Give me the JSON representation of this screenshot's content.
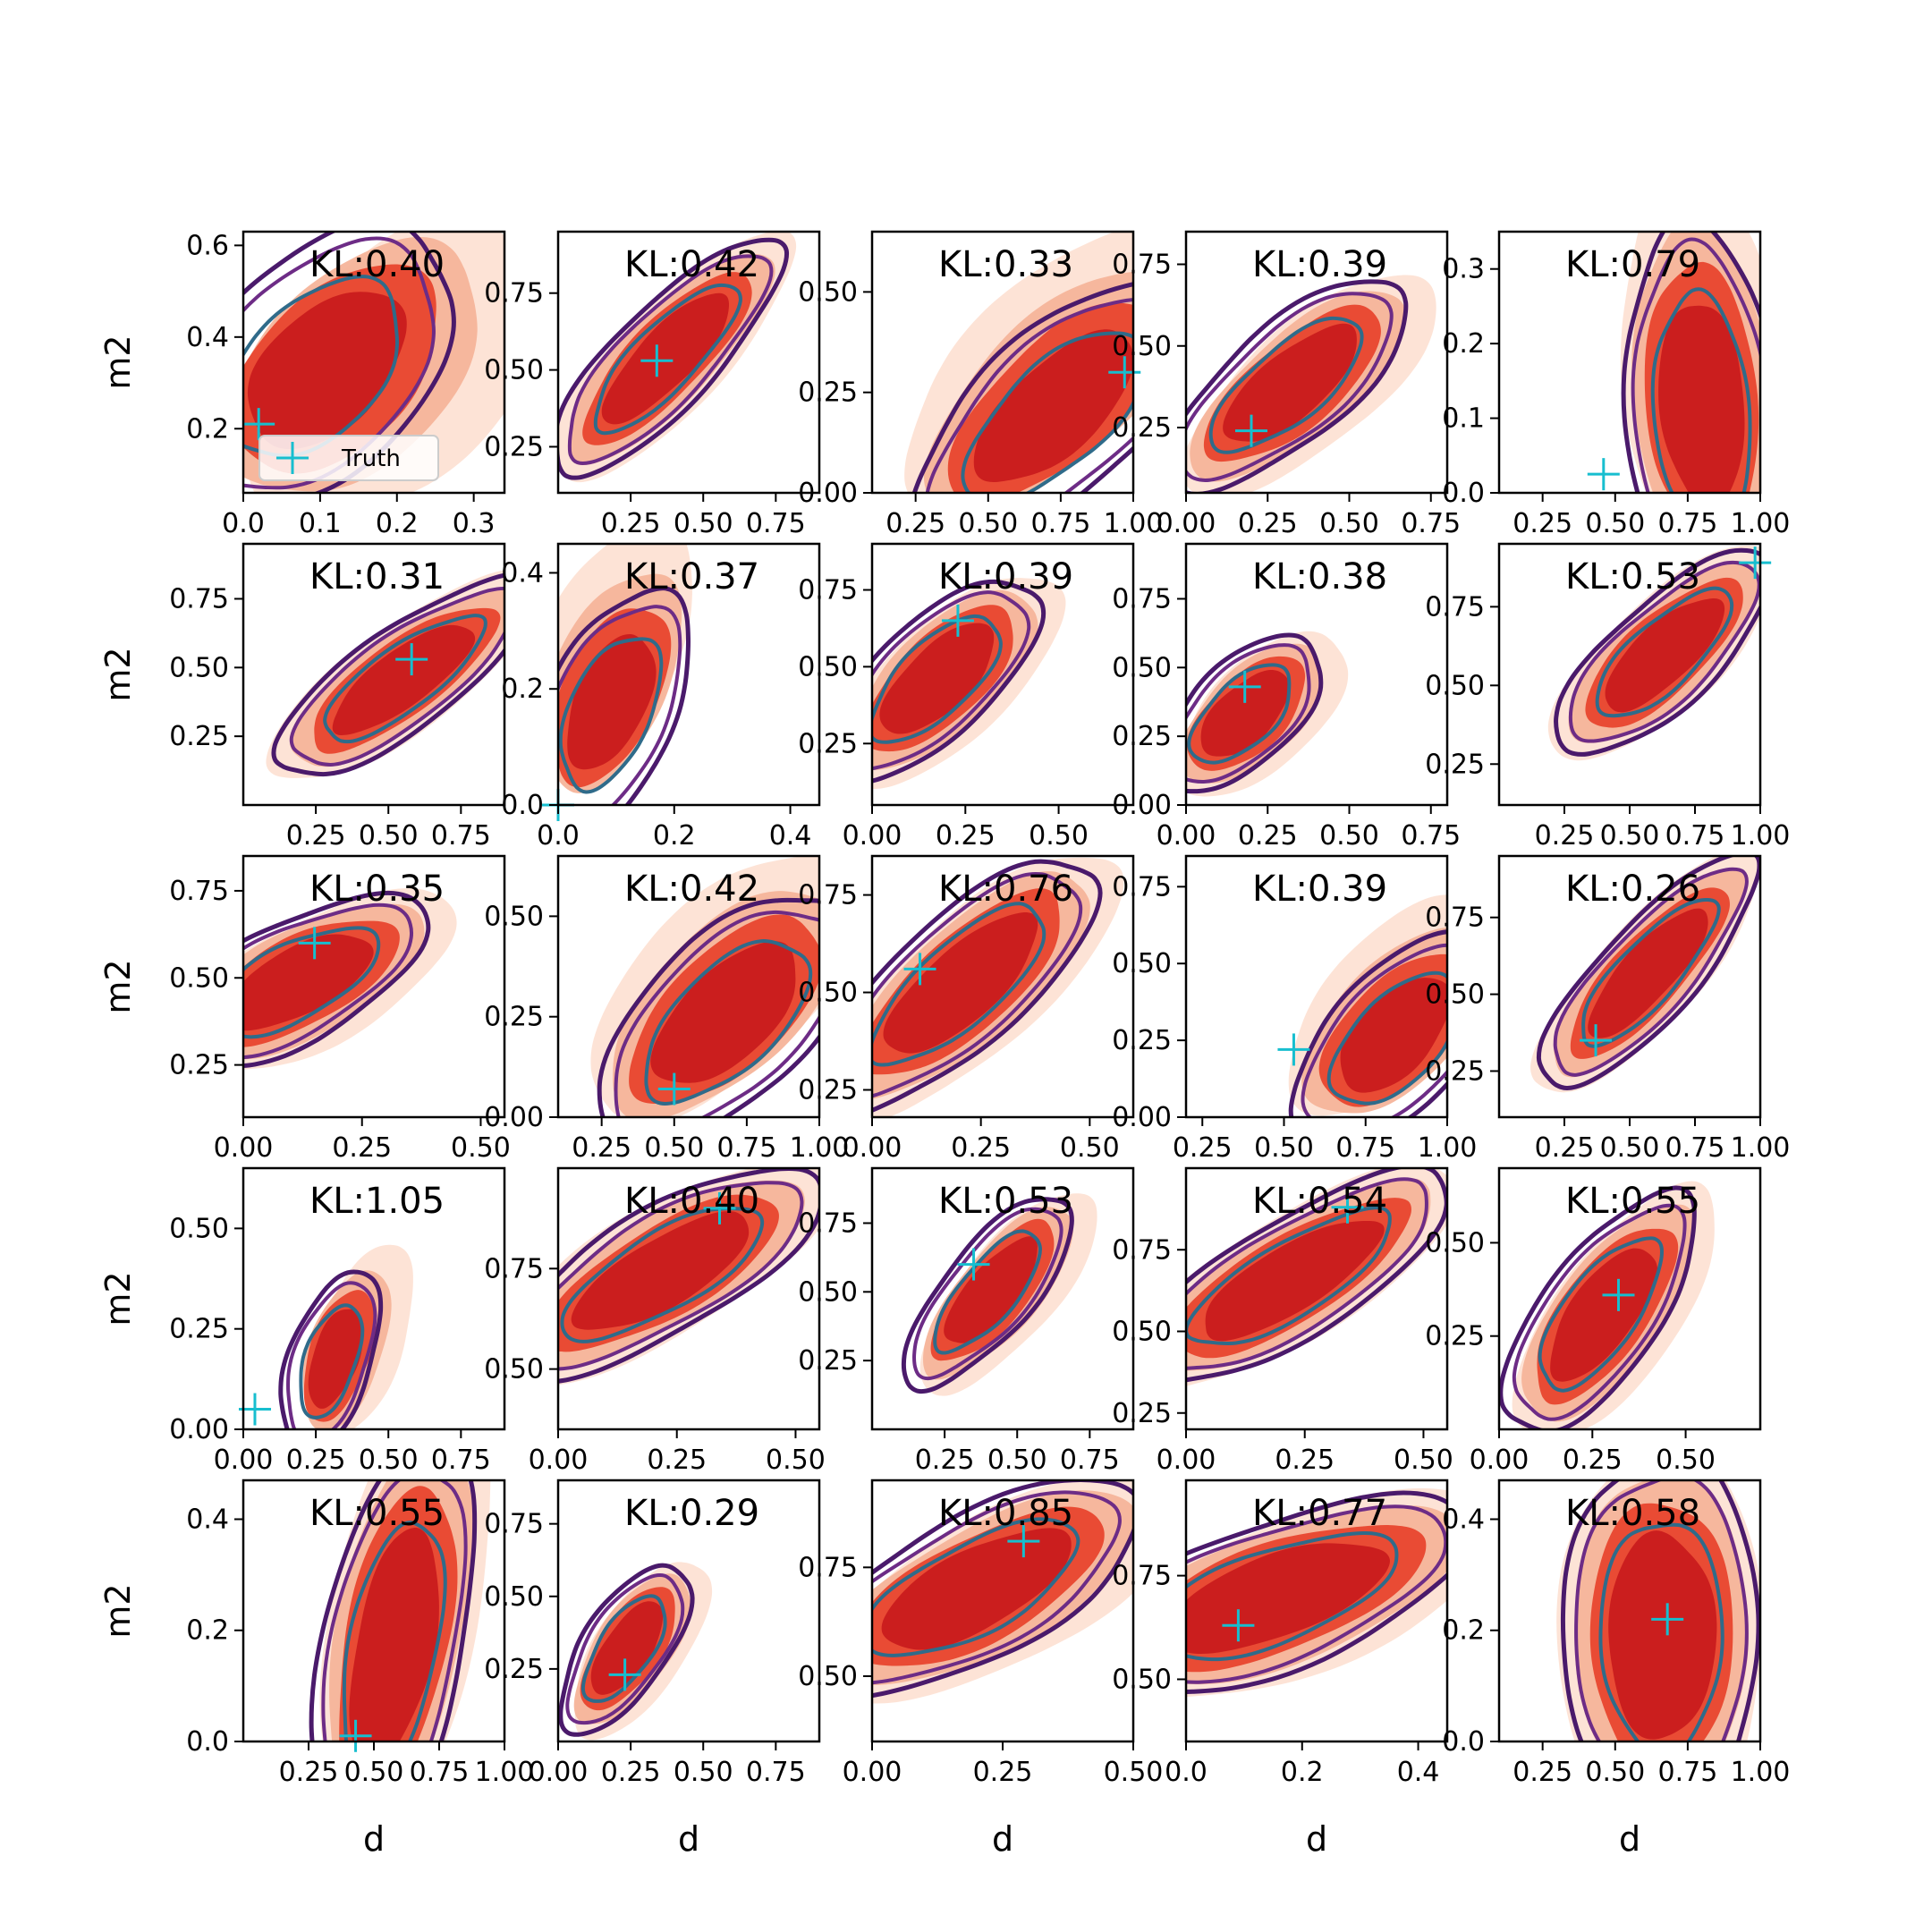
{
  "chart_data": {
    "type": "contour-grid",
    "rows": 5,
    "cols": 5,
    "xlabel": "d",
    "ylabel": "m2",
    "legend": {
      "label": "Truth",
      "marker": "+",
      "placement": "lower-right of first panel"
    },
    "colors": {
      "filled_levels": [
        "#fde0d2",
        "#f5b49a",
        "#e8442e",
        "#cb1e1e"
      ],
      "outer_contour": "#4a1a6b",
      "mid_contour": "#6d2c86",
      "inner_contour": "#2f6b8a",
      "truth_marker": "#17becf"
    },
    "panels": [
      {
        "kl": "KL:0.40",
        "xlim": [
          0.0,
          0.34
        ],
        "ylim": [
          0.06,
          0.63
        ],
        "xticks": [
          0.0,
          0.1,
          0.2,
          0.3
        ],
        "xticklabels": [
          "0.0",
          "0.1",
          "0.2",
          "0.3"
        ],
        "yticks": [
          0.2,
          0.4,
          0.6
        ],
        "yticklabels": [
          "0.2",
          "0.4",
          "0.6"
        ],
        "truth": [
          0.02,
          0.21
        ],
        "blob": {
          "cx": 0.09,
          "cy": 0.33,
          "angle": 70,
          "len": 0.29,
          "wid": 0.14,
          "sx": 0.12,
          "sy": 0.0
        },
        "legend": true
      },
      {
        "kl": "KL:0.42",
        "xlim": [
          0.0,
          0.9
        ],
        "ylim": [
          0.1,
          0.95
        ],
        "xticks": [
          0.25,
          0.5,
          0.75
        ],
        "xticklabels": [
          "0.25",
          "0.50",
          "0.75"
        ],
        "yticks": [
          0.25,
          0.5,
          0.75
        ],
        "yticklabels": [
          "0.25",
          "0.50",
          "0.75"
        ],
        "truth": [
          0.34,
          0.53
        ],
        "blob": {
          "cx": 0.37,
          "cy": 0.54,
          "angle": 44,
          "len": 0.47,
          "wid": 0.15,
          "sx": 0.02,
          "sy": 0.0
        }
      },
      {
        "kl": "KL:0.33",
        "xlim": [
          0.1,
          1.0
        ],
        "ylim": [
          0.0,
          0.65
        ],
        "xticks": [
          0.25,
          0.5,
          0.75,
          1.0
        ],
        "xticklabels": [
          "0.25",
          "0.50",
          "0.75",
          "1.00"
        ],
        "yticks": [
          0.0,
          0.25,
          0.5
        ],
        "yticklabels": [
          "0.00",
          "0.25",
          "0.50"
        ],
        "truth": [
          0.97,
          0.3
        ],
        "blob": {
          "cx": 0.73,
          "cy": 0.19,
          "angle": 30,
          "len": 0.5,
          "wid": 0.2,
          "sx": 0.0,
          "sy": 0.14
        }
      },
      {
        "kl": "KL:0.39",
        "xlim": [
          0.0,
          0.8
        ],
        "ylim": [
          0.05,
          0.85
        ],
        "xticks": [
          0.0,
          0.25,
          0.5,
          0.75
        ],
        "xticklabels": [
          "0.00",
          "0.25",
          "0.50",
          "0.75"
        ],
        "yticks": [
          0.25,
          0.5,
          0.75
        ],
        "yticklabels": [
          "0.25",
          "0.50",
          "0.75"
        ],
        "truth": [
          0.2,
          0.24
        ],
        "blob": {
          "cx": 0.31,
          "cy": 0.38,
          "angle": 40,
          "len": 0.41,
          "wid": 0.16,
          "sx": 0.08,
          "sy": 0.0
        }
      },
      {
        "kl": "KL:0.79",
        "xlim": [
          0.1,
          1.0
        ],
        "ylim": [
          0.0,
          0.35
        ],
        "xticks": [
          0.25,
          0.5,
          0.75,
          1.0
        ],
        "xticklabels": [
          "0.25",
          "0.50",
          "0.75",
          "1.00"
        ],
        "yticks": [
          0.0,
          0.1,
          0.2,
          0.3
        ],
        "yticklabels": [
          "0.0",
          "0.1",
          "0.2",
          "0.3"
        ],
        "truth": [
          0.46,
          0.025
        ],
        "blob": {
          "cx": 0.8,
          "cy": 0.11,
          "angle": 58,
          "len": 0.21,
          "wid": 0.25,
          "sx": 0.0,
          "sy": 0.06
        }
      },
      {
        "kl": "KL:0.31",
        "xlim": [
          0.0,
          0.9
        ],
        "ylim": [
          0.0,
          0.95
        ],
        "xticks": [
          0.25,
          0.5,
          0.75
        ],
        "xticklabels": [
          "0.25",
          "0.50",
          "0.75"
        ],
        "yticks": [
          0.25,
          0.5,
          0.75
        ],
        "yticklabels": [
          "0.25",
          "0.50",
          "0.75"
        ],
        "truth": [
          0.58,
          0.53
        ],
        "blob": {
          "cx": 0.55,
          "cy": 0.46,
          "angle": 38,
          "len": 0.48,
          "wid": 0.16,
          "sx": 0.0,
          "sy": 0.0
        }
      },
      {
        "kl": "KL:0.37",
        "xlim": [
          0.0,
          0.45
        ],
        "ylim": [
          0.0,
          0.45
        ],
        "xticks": [
          0.0,
          0.2,
          0.4
        ],
        "xticklabels": [
          "0.0",
          "0.2",
          "0.4"
        ],
        "yticks": [
          0.0,
          0.2,
          0.4
        ],
        "yticklabels": [
          "0.0",
          "0.2",
          "0.4"
        ],
        "truth": [
          0.0,
          0.0
        ],
        "blob": {
          "cx": 0.09,
          "cy": 0.16,
          "angle": 66,
          "len": 0.2,
          "wid": 0.1,
          "sx": 0.0,
          "sy": 0.12
        }
      },
      {
        "kl": "KL:0.39",
        "xlim": [
          0.0,
          0.7
        ],
        "ylim": [
          0.05,
          0.9
        ],
        "xticks": [
          0.0,
          0.25,
          0.5
        ],
        "xticklabels": [
          "0.00",
          "0.25",
          "0.50"
        ],
        "yticks": [
          0.25,
          0.5,
          0.75
        ],
        "yticklabels": [
          "0.25",
          "0.50",
          "0.75"
        ],
        "truth": [
          0.23,
          0.65
        ],
        "blob": {
          "cx": 0.17,
          "cy": 0.46,
          "angle": 52,
          "len": 0.35,
          "wid": 0.15,
          "sx": 0.05,
          "sy": 0.0
        }
      },
      {
        "kl": "KL:0.38",
        "xlim": [
          0.0,
          0.8
        ],
        "ylim": [
          0.0,
          0.95
        ],
        "xticks": [
          0.0,
          0.25,
          0.5,
          0.75
        ],
        "xticklabels": [
          "0.00",
          "0.25",
          "0.50",
          "0.75"
        ],
        "yticks": [
          0.0,
          0.25,
          0.5,
          0.75
        ],
        "yticklabels": [
          "0.00",
          "0.25",
          "0.50",
          "0.75"
        ],
        "truth": [
          0.18,
          0.43
        ],
        "blob": {
          "cx": 0.17,
          "cy": 0.33,
          "angle": 52,
          "len": 0.3,
          "wid": 0.15,
          "sx": 0.07,
          "sy": 0.0
        }
      },
      {
        "kl": "KL:0.53",
        "xlim": [
          0.0,
          1.0
        ],
        "ylim": [
          0.12,
          0.95
        ],
        "xticks": [
          0.25,
          0.5,
          0.75,
          1.0
        ],
        "xticklabels": [
          "0.25",
          "0.50",
          "0.75",
          "1.00"
        ],
        "yticks": [
          0.25,
          0.5,
          0.75
        ],
        "yticklabels": [
          "0.25",
          "0.50",
          "0.75"
        ],
        "truth": [
          0.98,
          0.89
        ],
        "blob": {
          "cx": 0.63,
          "cy": 0.6,
          "angle": 36,
          "len": 0.44,
          "wid": 0.16,
          "sx": 0.0,
          "sy": 0.0
        }
      },
      {
        "kl": "KL:0.35",
        "xlim": [
          0.0,
          0.55
        ],
        "ylim": [
          0.1,
          0.85
        ],
        "xticks": [
          0.0,
          0.25,
          0.5
        ],
        "xticklabels": [
          "0.00",
          "0.25",
          "0.50"
        ],
        "yticks": [
          0.25,
          0.5,
          0.75
        ],
        "yticklabels": [
          "0.25",
          "0.50",
          "0.75"
        ],
        "truth": [
          0.15,
          0.6
        ],
        "blob": {
          "cx": 0.11,
          "cy": 0.49,
          "angle": 40,
          "len": 0.3,
          "wid": 0.14,
          "sx": 0.05,
          "sy": 0.0
        }
      },
      {
        "kl": "KL:0.42",
        "xlim": [
          0.1,
          1.0
        ],
        "ylim": [
          0.0,
          0.65
        ],
        "xticks": [
          0.25,
          0.5,
          0.75,
          1.0
        ],
        "xticklabels": [
          "0.25",
          "0.50",
          "0.75",
          "1.00"
        ],
        "yticks": [
          0.0,
          0.25,
          0.5
        ],
        "yticklabels": [
          "0.00",
          "0.25",
          "0.50"
        ],
        "truth": [
          0.5,
          0.07
        ],
        "blob": {
          "cx": 0.68,
          "cy": 0.24,
          "angle": 30,
          "len": 0.45,
          "wid": 0.2,
          "sx": 0.0,
          "sy": 0.1
        }
      },
      {
        "kl": "KL:0.76",
        "xlim": [
          0.0,
          0.6
        ],
        "ylim": [
          0.18,
          0.85
        ],
        "xticks": [
          0.0,
          0.25,
          0.5
        ],
        "xticklabels": [
          "0.00",
          "0.25",
          "0.50"
        ],
        "yticks": [
          0.25,
          0.5,
          0.75
        ],
        "yticklabels": [
          "0.25",
          "0.50",
          "0.75"
        ],
        "truth": [
          0.11,
          0.56
        ],
        "blob": {
          "cx": 0.2,
          "cy": 0.52,
          "angle": 46,
          "len": 0.38,
          "wid": 0.14,
          "sx": 0.04,
          "sy": 0.0
        }
      },
      {
        "kl": "KL:0.39",
        "xlim": [
          0.2,
          1.0
        ],
        "ylim": [
          0.0,
          0.85
        ],
        "xticks": [
          0.25,
          0.5,
          0.75,
          1.0
        ],
        "xticklabels": [
          "0.25",
          "0.50",
          "0.75",
          "1.00"
        ],
        "yticks": [
          0.0,
          0.25,
          0.5,
          0.75
        ],
        "yticklabels": [
          "0.00",
          "0.25",
          "0.50",
          "0.75"
        ],
        "truth": [
          0.53,
          0.22
        ],
        "blob": {
          "cx": 0.84,
          "cy": 0.25,
          "angle": 50,
          "len": 0.36,
          "wid": 0.19,
          "sx": 0.0,
          "sy": 0.12
        }
      },
      {
        "kl": "KL:0.26",
        "xlim": [
          0.0,
          1.0
        ],
        "ylim": [
          0.1,
          0.95
        ],
        "xticks": [
          0.25,
          0.5,
          0.75,
          1.0
        ],
        "xticklabels": [
          "0.25",
          "0.50",
          "0.75",
          "1.00"
        ],
        "yticks": [
          0.25,
          0.5,
          0.75
        ],
        "yticklabels": [
          "0.25",
          "0.50",
          "0.75"
        ],
        "truth": [
          0.37,
          0.35
        ],
        "blob": {
          "cx": 0.57,
          "cy": 0.57,
          "angle": 42,
          "len": 0.48,
          "wid": 0.15,
          "sx": 0.0,
          "sy": 0.0
        }
      },
      {
        "kl": "KL:1.05",
        "xlim": [
          0.0,
          0.9
        ],
        "ylim": [
          0.0,
          0.65
        ],
        "xticks": [
          0.0,
          0.25,
          0.5,
          0.75
        ],
        "xticklabels": [
          "0.00",
          "0.25",
          "0.50",
          "0.75"
        ],
        "yticks": [
          0.0,
          0.25,
          0.5
        ],
        "yticklabels": [
          "0.00",
          "0.25",
          "0.50"
        ],
        "truth": [
          0.04,
          0.05
        ],
        "blob": {
          "cx": 0.3,
          "cy": 0.17,
          "angle": 60,
          "len": 0.22,
          "wid": 0.12,
          "sx": 0.12,
          "sy": 0.06
        }
      },
      {
        "kl": "KL:0.40",
        "xlim": [
          0.0,
          0.55
        ],
        "ylim": [
          0.35,
          1.0
        ],
        "xticks": [
          0.0,
          0.25,
          0.5
        ],
        "xticklabels": [
          "0.00",
          "0.25",
          "0.50"
        ],
        "yticks": [
          0.5,
          0.75
        ],
        "yticklabels": [
          "0.50",
          "0.75"
        ],
        "truth": [
          0.34,
          0.9
        ],
        "blob": {
          "cx": 0.22,
          "cy": 0.74,
          "angle": 36,
          "len": 0.36,
          "wid": 0.13,
          "sx": 0.0,
          "sy": 0.0
        }
      },
      {
        "kl": "KL:0.53",
        "xlim": [
          0.0,
          0.9
        ],
        "ylim": [
          0.0,
          0.95
        ],
        "xticks": [
          0.25,
          0.5,
          0.75
        ],
        "xticklabels": [
          "0.25",
          "0.50",
          "0.75"
        ],
        "yticks": [
          0.25,
          0.5,
          0.75
        ],
        "yticklabels": [
          "0.25",
          "0.50",
          "0.75"
        ],
        "truth": [
          0.35,
          0.6
        ],
        "blob": {
          "cx": 0.4,
          "cy": 0.5,
          "angle": 52,
          "len": 0.38,
          "wid": 0.14,
          "sx": 0.08,
          "sy": 0.0
        }
      },
      {
        "kl": "KL:0.54",
        "xlim": [
          0.0,
          0.55
        ],
        "ylim": [
          0.2,
          1.0
        ],
        "xticks": [
          0.0,
          0.25,
          0.5
        ],
        "xticklabels": [
          "0.00",
          "0.25",
          "0.50"
        ],
        "yticks": [
          0.25,
          0.5,
          0.75
        ],
        "yticklabels": [
          "0.25",
          "0.50",
          "0.75"
        ],
        "truth": [
          0.34,
          0.88
        ],
        "blob": {
          "cx": 0.22,
          "cy": 0.66,
          "angle": 44,
          "len": 0.4,
          "wid": 0.14,
          "sx": 0.0,
          "sy": 0.0
        }
      },
      {
        "kl": "KL:0.55",
        "xlim": [
          0.0,
          0.7
        ],
        "ylim": [
          0.0,
          0.7
        ],
        "xticks": [
          0.0,
          0.25,
          0.5
        ],
        "xticklabels": [
          "0.00",
          "0.25",
          "0.50"
        ],
        "yticks": [
          0.25,
          0.5
        ],
        "yticklabels": [
          "0.25",
          "0.50"
        ],
        "truth": [
          0.32,
          0.36
        ],
        "blob": {
          "cx": 0.27,
          "cy": 0.31,
          "angle": 54,
          "len": 0.34,
          "wid": 0.14,
          "sx": 0.05,
          "sy": 0.0
        }
      },
      {
        "kl": "KL:0.55",
        "xlim": [
          0.0,
          1.0
        ],
        "ylim": [
          0.0,
          0.47
        ],
        "xticks": [
          0.25,
          0.5,
          0.75,
          1.0
        ],
        "xticklabels": [
          "0.25",
          "0.50",
          "0.75",
          "1.00"
        ],
        "yticks": [
          0.0,
          0.2,
          0.4
        ],
        "yticklabels": [
          "0.0",
          "0.2",
          "0.4"
        ],
        "truth": [
          0.43,
          0.01
        ],
        "blob": {
          "cx": 0.57,
          "cy": 0.16,
          "angle": 58,
          "len": 0.38,
          "wid": 0.22,
          "sx": 0.06,
          "sy": 0.08
        }
      },
      {
        "kl": "KL:0.29",
        "xlim": [
          0.0,
          0.9
        ],
        "ylim": [
          0.0,
          0.9
        ],
        "xticks": [
          0.0,
          0.25,
          0.5,
          0.75
        ],
        "xticklabels": [
          "0.00",
          "0.25",
          "0.50",
          "0.75"
        ],
        "yticks": [
          0.25,
          0.5,
          0.75
        ],
        "yticklabels": [
          "0.25",
          "0.50",
          "0.75"
        ],
        "truth": [
          0.23,
          0.23
        ],
        "blob": {
          "cx": 0.23,
          "cy": 0.32,
          "angle": 56,
          "len": 0.3,
          "wid": 0.13,
          "sx": 0.06,
          "sy": 0.0
        }
      },
      {
        "kl": "KL:0.85",
        "xlim": [
          0.0,
          0.5
        ],
        "ylim": [
          0.35,
          0.95
        ],
        "xticks": [
          0.0,
          0.25,
          0.5
        ],
        "xticklabels": [
          "0.00",
          "0.25",
          "0.50"
        ],
        "yticks": [
          0.5,
          0.75
        ],
        "yticklabels": [
          "0.50",
          "0.75"
        ],
        "truth": [
          0.29,
          0.81
        ],
        "blob": {
          "cx": 0.19,
          "cy": 0.7,
          "angle": 34,
          "len": 0.34,
          "wid": 0.14,
          "sx": 0.06,
          "sy": 0.0
        }
      },
      {
        "kl": "KL:0.77",
        "xlim": [
          0.0,
          0.45
        ],
        "ylim": [
          0.35,
          0.98
        ],
        "xticks": [
          0.0,
          0.2,
          0.4
        ],
        "xticklabels": [
          "0.0",
          "0.2",
          "0.4"
        ],
        "yticks": [
          0.5,
          0.75
        ],
        "yticklabels": [
          "0.50",
          "0.75"
        ],
        "truth": [
          0.09,
          0.63
        ],
        "blob": {
          "cx": 0.15,
          "cy": 0.7,
          "angle": 30,
          "len": 0.34,
          "wid": 0.15,
          "sx": 0.04,
          "sy": 0.0
        }
      },
      {
        "kl": "KL:0.58",
        "xlim": [
          0.1,
          1.0
        ],
        "ylim": [
          0.0,
          0.47
        ],
        "xticks": [
          0.25,
          0.5,
          0.75,
          1.0
        ],
        "xticklabels": [
          "0.25",
          "0.50",
          "0.75",
          "1.00"
        ],
        "yticks": [
          0.0,
          0.2,
          0.4
        ],
        "yticklabels": [
          "0.0",
          "0.2",
          "0.4"
        ],
        "truth": [
          0.68,
          0.22
        ],
        "blob": {
          "cx": 0.66,
          "cy": 0.19,
          "angle": 58,
          "len": 0.3,
          "wid": 0.3,
          "sx": 0.0,
          "sy": 0.0
        }
      }
    ]
  }
}
